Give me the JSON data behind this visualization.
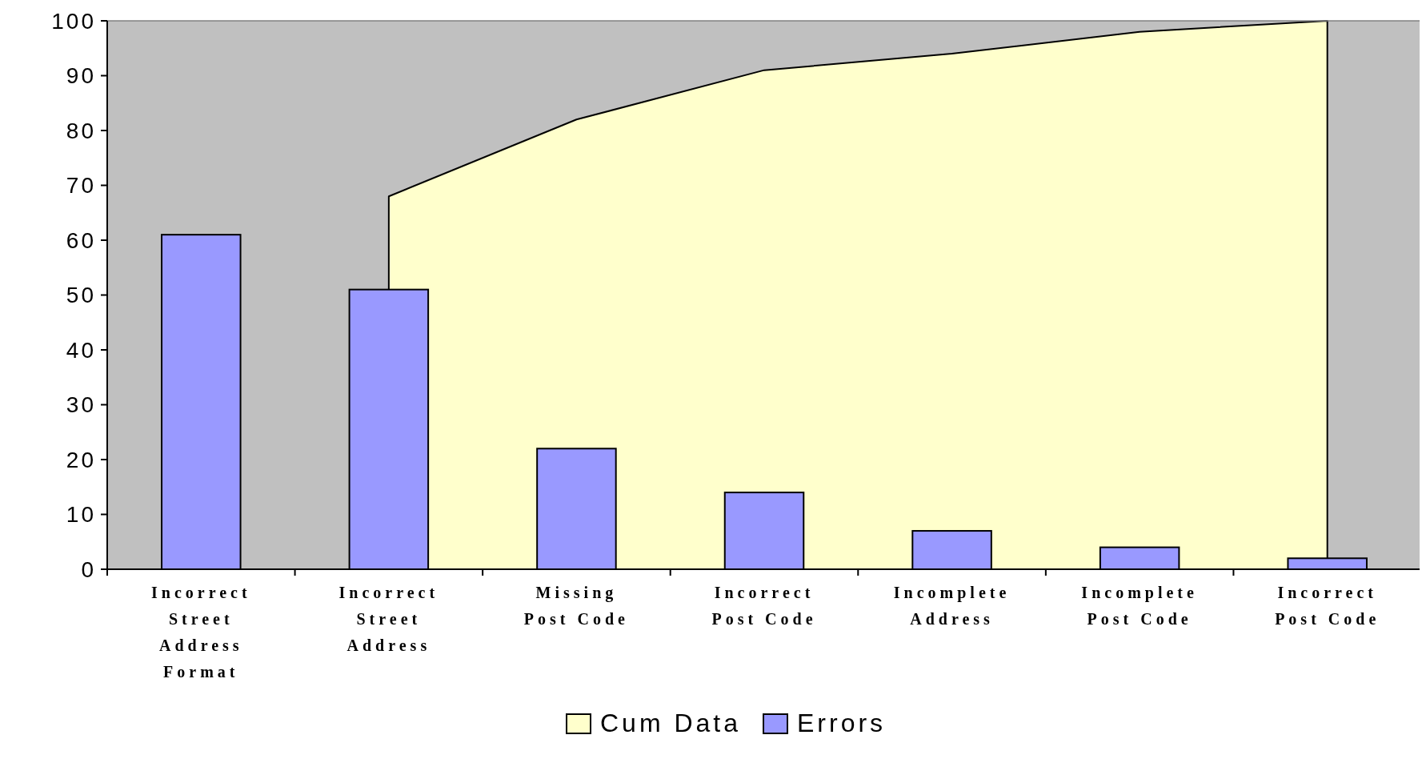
{
  "chart_data": {
    "type": "bar",
    "categories": [
      "Incorrect Street Address Format",
      "Incorrect Street Address",
      "Missing Post Code",
      "Incorrect Post Code",
      "Incomplete Address",
      "Incomplete Post Code",
      "Incorrect Post Code"
    ],
    "series": [
      {
        "name": "Cum Data",
        "type": "area",
        "color": "#ffffcc",
        "values": [
          null,
          68,
          82,
          91,
          94,
          98,
          100
        ]
      },
      {
        "name": "Errors",
        "color": "#9999ff",
        "values": [
          61,
          51,
          22,
          14,
          7,
          4,
          2
        ]
      }
    ],
    "ylim": [
      0,
      100
    ],
    "yticks": [
      0,
      10,
      20,
      30,
      40,
      50,
      60,
      70,
      80,
      90,
      100
    ],
    "grid": false,
    "legend": "bottom"
  }
}
